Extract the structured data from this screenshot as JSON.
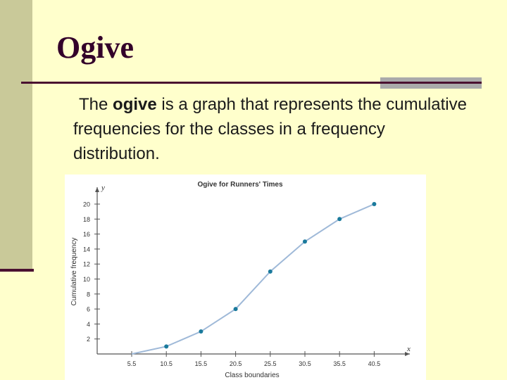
{
  "slide": {
    "title": "Ogive",
    "body_pre": "The ",
    "body_bold": "ogive",
    "body_post": " is a graph that represents the cumulative frequencies for the classes in a frequency distribution."
  },
  "colors": {
    "background": "#ffffcc",
    "band": "#c9c999",
    "accent": "#4a1030",
    "line": "#9fb9d8",
    "point": "#1a7a9c"
  },
  "chart_data": {
    "type": "line",
    "title": "Ogive for Runners' Times",
    "xlabel": "Class boundaries",
    "ylabel": "Cumulative frequency",
    "x_axis_letter": "x",
    "y_axis_letter": "y",
    "x": [
      5.5,
      10.5,
      15.5,
      20.5,
      25.5,
      30.5,
      35.5,
      40.5
    ],
    "x_tick_labels": [
      "5.5",
      "10.5",
      "15.5",
      "20.5",
      "25.5",
      "30.5",
      "35.5",
      "40.5"
    ],
    "y_ticks": [
      2,
      4,
      6,
      8,
      10,
      12,
      14,
      16,
      18,
      20
    ],
    "ylim": [
      0,
      20
    ],
    "series": [
      {
        "values": [
          0,
          1,
          3,
          6,
          11,
          15,
          18,
          20
        ]
      }
    ],
    "point_markers": [
      false,
      true,
      true,
      true,
      true,
      true,
      true,
      true
    ],
    "grid": false
  }
}
